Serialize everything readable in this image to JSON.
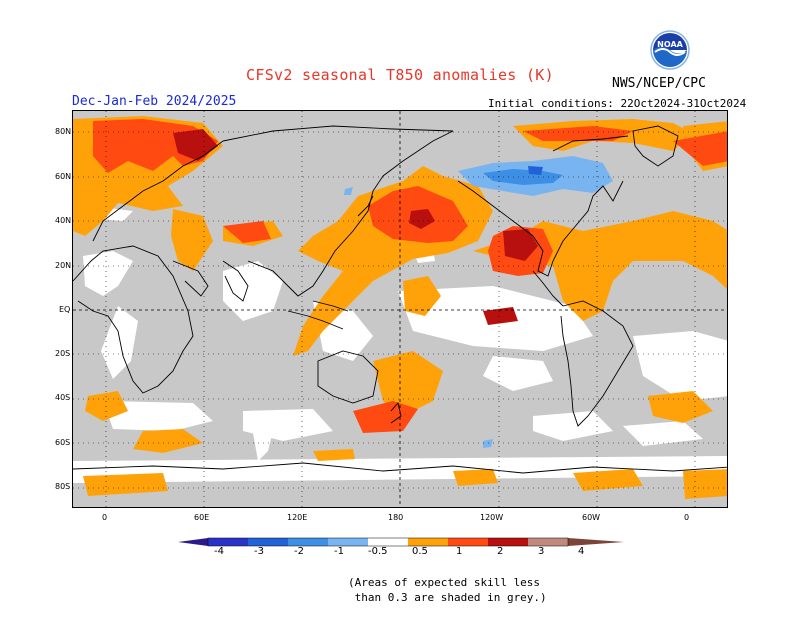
{
  "header": {
    "title": "CFSv2 seasonal T850 anomalies (K)",
    "agency": "NWS/NCEP/CPC",
    "logo_text": "NOAA",
    "period": "Dec-Jan-Feb 2024/2025",
    "initial_conditions": "Initial conditions: 22Oct2024-31Oct2024"
  },
  "map": {
    "projection": "equirectangular",
    "center_longitude": "180",
    "lat_labels": [
      "80N",
      "60N",
      "40N",
      "20N",
      "EQ",
      "20S",
      "40S",
      "60S",
      "80S"
    ],
    "lon_labels": [
      "0",
      "60E",
      "120E",
      "180",
      "120W",
      "60W",
      "0"
    ],
    "grid": "dotted"
  },
  "colorbar": {
    "labels": [
      "-4",
      "-3",
      "-2",
      "-1",
      "-0.5",
      "0.5",
      "1",
      "2",
      "3",
      "4"
    ],
    "colors": {
      "lt_neg4": "#2a1a8a",
      "neg4_neg3": "#2a33c8",
      "neg3_neg2": "#2163d6",
      "neg2_neg1": "#3d8fe6",
      "neg1_neg05": "#78b4f0",
      "neutral": "#ffffff",
      "p05_1": "#ffa20a",
      "p1_2": "#ff4a12",
      "p2_3": "#b8100e",
      "p3_4": "#c28a7e",
      "gt_4": "#7a4538",
      "low_skill": "#c8c8c8"
    }
  },
  "note": {
    "line1": "(Areas of expected skill less",
    "line2": " than 0.3 are shaded in grey.)"
  }
}
